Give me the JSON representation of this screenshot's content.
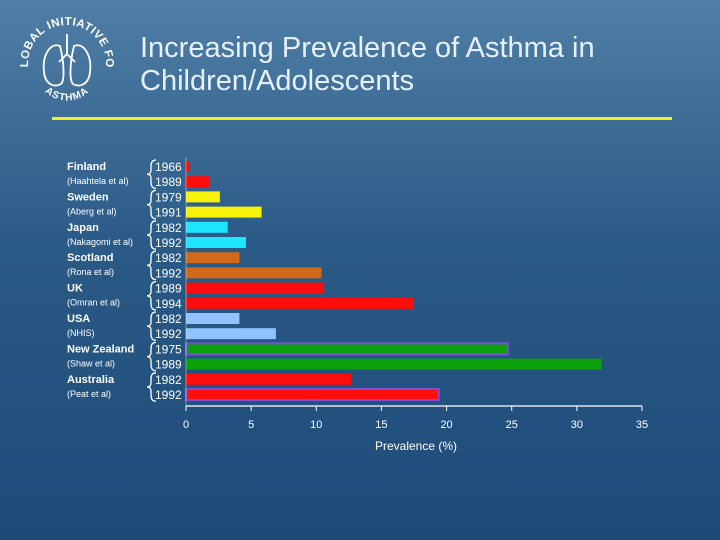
{
  "logo": {
    "top_text": "GLOBAL INITIATIVE FOR",
    "bottom_text": "ASTHMA"
  },
  "title": {
    "line1": "Increasing Prevalence of Asthma in",
    "line2": "Children/Adolescents"
  },
  "colors": {
    "background": "#2a5a86",
    "rule": "#f2ef1a"
  },
  "chart_data": {
    "type": "bar",
    "orientation": "horizontal",
    "xlabel": "Prevalence (%)",
    "xlim": [
      0,
      35
    ],
    "xticks": [
      0,
      5,
      10,
      15,
      20,
      25,
      30,
      35
    ],
    "groups": [
      {
        "country": "Finland",
        "ref": "(Haahtela et al)",
        "bars": [
          {
            "year": "1966",
            "value": 0.3,
            "color": "#ff0d0d"
          },
          {
            "year": "1989",
            "value": 1.8,
            "color": "#ff0d0d"
          }
        ]
      },
      {
        "country": "Sweden",
        "ref": "(Aberg et al)",
        "bars": [
          {
            "year": "1979",
            "value": 2.6,
            "color": "#f8f20a"
          },
          {
            "year": "1991",
            "value": 5.8,
            "color": "#f8f20a"
          }
        ]
      },
      {
        "country": "Japan",
        "ref": "(Nakagomi et al)",
        "bars": [
          {
            "year": "1982",
            "value": 3.2,
            "color": "#1ee6ff"
          },
          {
            "year": "1992",
            "value": 4.6,
            "color": "#1ee6ff"
          }
        ]
      },
      {
        "country": "Scotland",
        "ref": "(Rona et al)",
        "bars": [
          {
            "year": "1982",
            "value": 4.1,
            "color": "#d2691a"
          },
          {
            "year": "1992",
            "value": 10.4,
            "color": "#d2691a"
          }
        ]
      },
      {
        "country": "UK",
        "ref": "(Omran et al)",
        "bars": [
          {
            "year": "1989",
            "value": 10.6,
            "color": "#ff0d0d"
          },
          {
            "year": "1994",
            "value": 17.5,
            "color": "#ff0d0d"
          }
        ]
      },
      {
        "country": "USA",
        "ref": "(NHIS)",
        "bars": [
          {
            "year": "1982",
            "value": 4.1,
            "color": "#8fc2ff"
          },
          {
            "year": "1992",
            "value": 6.9,
            "color": "#8fc2ff"
          }
        ]
      },
      {
        "country": "New Zealand",
        "ref": "(Shaw et al)",
        "bars": [
          {
            "year": "1975",
            "value": 24.7,
            "color": "#0aa00a"
          },
          {
            "year": "1989",
            "value": 31.9,
            "color": "#0aa00a"
          }
        ]
      },
      {
        "country": "Australia",
        "ref": "(Peat et al)",
        "bars": [
          {
            "year": "1982",
            "value": 12.7,
            "color": "#ff0d0d"
          },
          {
            "year": "1992",
            "value": 19.4,
            "color": "#ff0d0d"
          }
        ]
      }
    ]
  }
}
